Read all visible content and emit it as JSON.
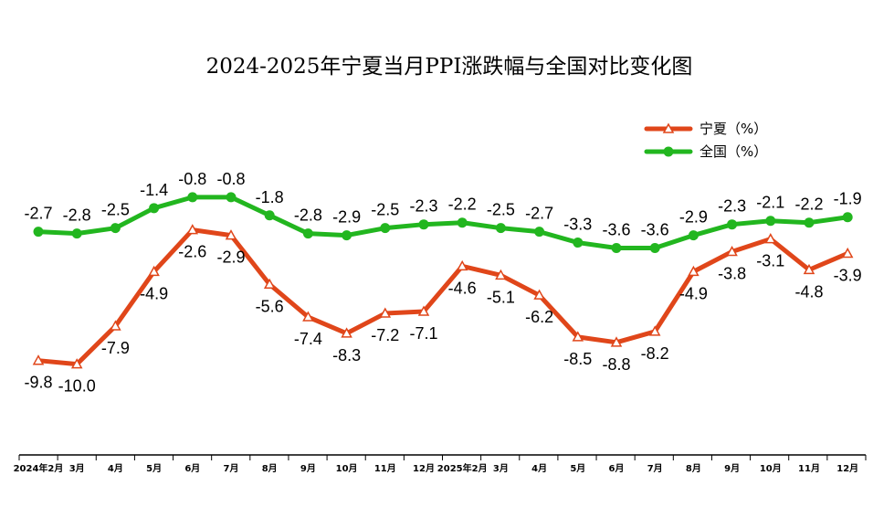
{
  "chart_data": {
    "type": "line",
    "title": "2024-2025年宁夏当月PPI涨跌幅与全国对比变化图",
    "categories": [
      "2024年2月",
      "3月",
      "4月",
      "5月",
      "6月",
      "7月",
      "8月",
      "9月",
      "10月",
      "11月",
      "12月",
      "2025年2月",
      "3月",
      "4月",
      "5月",
      "6月",
      "7月",
      "8月",
      "9月",
      "10月",
      "11月",
      "12月"
    ],
    "series": [
      {
        "name": "宁夏（%）",
        "color": "#e0461a",
        "marker": "triangle",
        "values": [
          -9.8,
          -10.0,
          -7.9,
          -4.9,
          -2.6,
          -2.9,
          -5.6,
          -7.4,
          -8.3,
          -7.2,
          -7.1,
          -4.6,
          -5.1,
          -6.2,
          -8.5,
          -8.8,
          -8.2,
          -4.9,
          -3.8,
          -3.1,
          -4.8,
          -3.9
        ]
      },
      {
        "name": "全国（%）",
        "color": "#22b61f",
        "marker": "circle",
        "values": [
          -2.7,
          -2.8,
          -2.5,
          -1.4,
          -0.8,
          -0.8,
          -1.8,
          -2.8,
          -2.9,
          -2.5,
          -2.3,
          -2.2,
          -2.5,
          -2.7,
          -3.3,
          -3.6,
          -3.6,
          -2.9,
          -2.3,
          -2.1,
          -2.2,
          -1.9
        ]
      }
    ],
    "legend_position": "top-right",
    "grid": false
  }
}
